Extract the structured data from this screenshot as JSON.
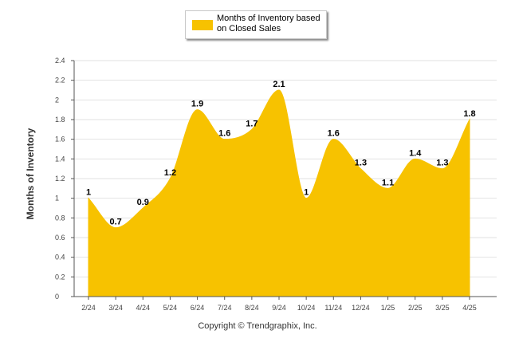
{
  "colors": {
    "fill": "#f7c200",
    "grid": "#e2e2e2",
    "axis": "#555555"
  },
  "legend": {
    "label": "Months of Inventory based on Closed Sales"
  },
  "copyright": "Copyright © Trendgraphix, Inc.",
  "chart_data": {
    "type": "area",
    "title": "",
    "xlabel": "",
    "ylabel": "Months of Inventory",
    "categories": [
      "2/24",
      "3/24",
      "4/24",
      "5/24",
      "6/24",
      "7/24",
      "8/24",
      "9/24",
      "10/24",
      "11/24",
      "12/24",
      "1/25",
      "2/25",
      "3/25",
      "4/25"
    ],
    "series": [
      {
        "name": "Months of Inventory based on Closed Sales",
        "values": [
          1,
          0.7,
          0.9,
          1.2,
          1.9,
          1.6,
          1.7,
          2.1,
          1,
          1.6,
          1.3,
          1.1,
          1.4,
          1.3,
          1.8
        ]
      }
    ],
    "yticks": [
      "0",
      "0.2",
      "0.4",
      "0.6",
      "0.8",
      "1",
      "1.2",
      "1.4",
      "1.6",
      "1.8",
      "2",
      "2.2",
      "2.4"
    ],
    "ylim": [
      0,
      2.4
    ],
    "grid": true,
    "smooth": true,
    "data_labels": true,
    "legend_position": "top-center"
  }
}
